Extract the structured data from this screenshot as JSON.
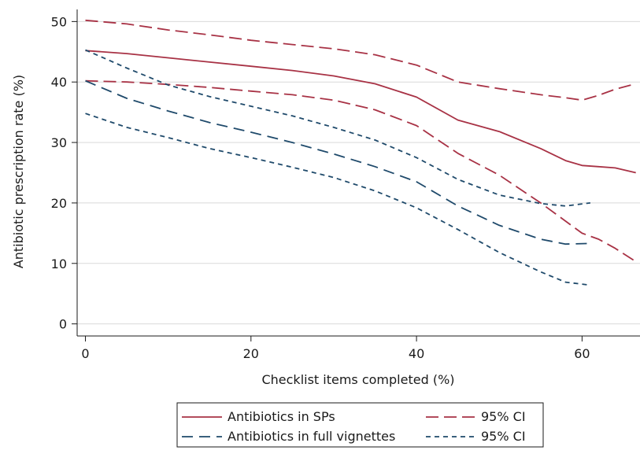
{
  "chart_data": {
    "type": "line",
    "title": "",
    "xlabel": "Checklist items completed (%)",
    "ylabel": "Antibiotic prescription rate (%)",
    "xlim": [
      -1,
      67
    ],
    "ylim": [
      -2,
      52
    ],
    "x_ticks": [
      0,
      20,
      40,
      60
    ],
    "x_tick_labels": [
      "0",
      "20",
      "40",
      "60"
    ],
    "y_ticks": [
      0,
      10,
      20,
      30,
      40,
      50
    ],
    "y_tick_labels": [
      "0",
      "10",
      "20",
      "30",
      "40",
      "50"
    ],
    "grid": "horizontal",
    "legend_position": "bottom",
    "colors": {
      "sp": "#a83245",
      "vignette": "#1f4a6b"
    },
    "series": [
      {
        "name": "Antibiotics in SPs",
        "style": "solid",
        "color": "#a83245",
        "x": [
          0,
          5,
          10,
          15,
          20,
          25,
          30,
          35,
          40,
          45,
          50,
          55,
          58,
          60,
          62,
          64,
          66.5
        ],
        "y": [
          45.2,
          44.7,
          44.0,
          43.3,
          42.6,
          41.9,
          41.0,
          39.7,
          37.5,
          33.7,
          31.8,
          29.0,
          27.0,
          26.2,
          26.0,
          25.8,
          25.0
        ]
      },
      {
        "name": "95% CI",
        "style": "long-dash",
        "color": "#a83245",
        "x": [
          0,
          5,
          10,
          15,
          20,
          25,
          30,
          35,
          40,
          45,
          50,
          55,
          58,
          60,
          62,
          64,
          66.5
        ],
        "y": [
          50.2,
          49.6,
          48.6,
          47.8,
          46.9,
          46.2,
          45.5,
          44.5,
          42.8,
          40.0,
          38.9,
          37.9,
          37.4,
          37.0,
          37.8,
          38.8,
          39.7
        ]
      },
      {
        "name": "",
        "style": "long-dash",
        "color": "#a83245",
        "x": [
          0,
          5,
          10,
          15,
          20,
          25,
          30,
          35,
          40,
          45,
          50,
          55,
          58,
          60,
          62,
          64,
          66.5
        ],
        "y": [
          40.2,
          40.0,
          39.6,
          39.1,
          38.5,
          37.9,
          37.0,
          35.4,
          32.8,
          28.2,
          24.6,
          20.0,
          17.0,
          15.0,
          14.0,
          12.5,
          10.3
        ]
      },
      {
        "name": "Antibiotics in full vignettes",
        "style": "dash",
        "color": "#1f4a6b",
        "x": [
          0,
          5,
          10,
          15,
          20,
          25,
          30,
          35,
          40,
          45,
          50,
          55,
          58,
          61
        ],
        "y": [
          40.2,
          37.3,
          35.2,
          33.3,
          31.7,
          30.0,
          28.1,
          26.0,
          23.5,
          19.5,
          16.3,
          14.0,
          13.2,
          13.3
        ]
      },
      {
        "name": "95% CI",
        "style": "short-dash",
        "color": "#1f4a6b",
        "x": [
          0,
          5,
          10,
          15,
          20,
          25,
          30,
          35,
          40,
          45,
          50,
          55,
          58,
          61
        ],
        "y": [
          45.3,
          42.3,
          39.5,
          37.6,
          36.0,
          34.4,
          32.5,
          30.4,
          27.5,
          23.9,
          21.3,
          19.9,
          19.5,
          20.0
        ]
      },
      {
        "name": "",
        "style": "short-dash",
        "color": "#1f4a6b",
        "x": [
          0,
          5,
          10,
          15,
          20,
          25,
          30,
          35,
          40,
          45,
          50,
          55,
          58,
          61
        ],
        "y": [
          34.8,
          32.5,
          30.8,
          29.0,
          27.5,
          25.9,
          24.2,
          22.0,
          19.2,
          15.6,
          11.8,
          8.6,
          6.9,
          6.4
        ]
      }
    ],
    "legend": [
      {
        "label": "Antibiotics in SPs",
        "style": "solid",
        "color": "#a83245"
      },
      {
        "label": "95% CI",
        "style": "long-dash",
        "color": "#a83245"
      },
      {
        "label": "Antibiotics in full vignettes",
        "style": "dash",
        "color": "#1f4a6b"
      },
      {
        "label": "95% CI",
        "style": "short-dash",
        "color": "#1f4a6b"
      }
    ]
  }
}
